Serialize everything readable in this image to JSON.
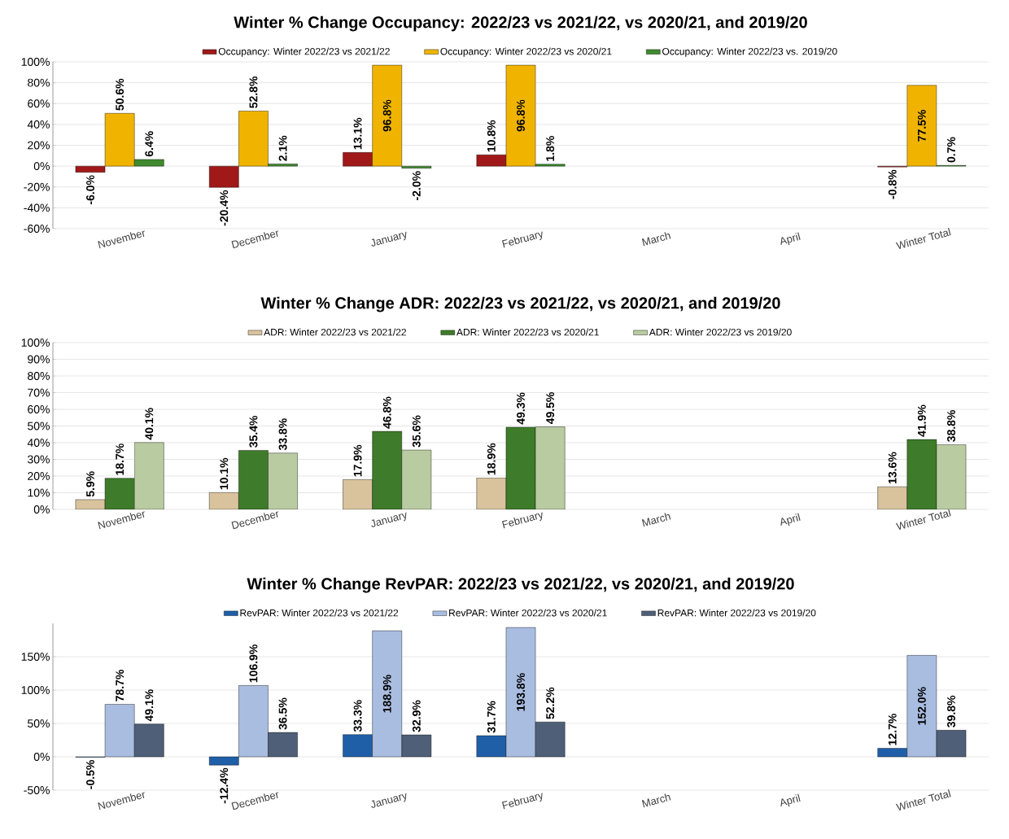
{
  "chart_data": [
    {
      "type": "bar",
      "title": "Winter % Change Occupancy:  2022/23 vs 2021/22, vs 2020/21, and 2019/20",
      "categories": [
        "November",
        "December",
        "January",
        "February",
        "March",
        "April",
        "Winter Total"
      ],
      "legend": "top",
      "grid": "y",
      "ylim": [
        -60,
        100
      ],
      "yticks": [
        {
          "value": -60,
          "label": "-60%"
        },
        {
          "value": -40,
          "label": "-40%"
        },
        {
          "value": -20,
          "label": "-20%"
        },
        {
          "value": 0,
          "label": "0%"
        },
        {
          "value": 20,
          "label": "20%"
        },
        {
          "value": 40,
          "label": "40%"
        },
        {
          "value": 60,
          "label": "60%"
        },
        {
          "value": 80,
          "label": "80%"
        },
        {
          "value": 100,
          "label": "100%"
        }
      ],
      "series": [
        {
          "name": "Occupancy: Winter 2022/23 vs 2021/22",
          "color": "#a01818",
          "values": [
            -6.0,
            -20.4,
            13.1,
            10.8,
            null,
            null,
            -0.8
          ],
          "value_labels": [
            "-6.0%",
            "-20.4%",
            "13.1%",
            "10.8%",
            null,
            null,
            "-0.8%"
          ]
        },
        {
          "name": "Occupancy: Winter 2022/23 vs 2020/21",
          "color": "#f0b400",
          "values": [
            50.6,
            52.8,
            96.8,
            96.8,
            null,
            null,
            77.5
          ],
          "value_labels": [
            "50.6%",
            "52.8%",
            "96.8%",
            "96.8%",
            null,
            null,
            "77.5%"
          ]
        },
        {
          "name": "Occupancy: Winter 2022/23 vs. 2019/20",
          "color": "#3f8a2e",
          "values": [
            6.4,
            2.1,
            -2.0,
            1.8,
            null,
            null,
            0.7
          ],
          "value_labels": [
            "6.4%",
            "2.1%",
            "-2.0%",
            "1.8%",
            null,
            null,
            "0.7%"
          ]
        }
      ]
    },
    {
      "type": "bar",
      "title": "Winter % Change ADR:  2022/23 vs 2021/22, vs 2020/21, and 2019/20",
      "categories": [
        "November",
        "December",
        "January",
        "February",
        "March",
        "April",
        "Winter Total"
      ],
      "legend": "top",
      "grid": "y",
      "ylim": [
        0,
        100
      ],
      "yticks": [
        {
          "value": 0,
          "label": "0%"
        },
        {
          "value": 10,
          "label": "10%"
        },
        {
          "value": 20,
          "label": "20%"
        },
        {
          "value": 30,
          "label": "30%"
        },
        {
          "value": 40,
          "label": "40%"
        },
        {
          "value": 50,
          "label": "50%"
        },
        {
          "value": 60,
          "label": "60%"
        },
        {
          "value": 70,
          "label": "70%"
        },
        {
          "value": 80,
          "label": "80%"
        },
        {
          "value": 90,
          "label": "90%"
        },
        {
          "value": 100,
          "label": "100%"
        }
      ],
      "series": [
        {
          "name": "ADR: Winter 2022/23 vs 2021/22",
          "color": "#d8c39c",
          "values": [
            5.9,
            10.1,
            17.9,
            18.9,
            null,
            null,
            13.6
          ],
          "value_labels": [
            "5.9%",
            "10.1%",
            "17.9%",
            "18.9%",
            null,
            null,
            "13.6%"
          ]
        },
        {
          "name": "ADR: Winter 2022/23 vs 2020/21",
          "color": "#3e7b2a",
          "values": [
            18.7,
            35.4,
            46.8,
            49.3,
            null,
            null,
            41.9
          ],
          "value_labels": [
            "18.7%",
            "35.4%",
            "46.8%",
            "49.3%",
            null,
            null,
            "41.9%"
          ]
        },
        {
          "name": "ADR: Winter 2022/23 vs 2019/20",
          "color": "#b9cba0",
          "values": [
            40.1,
            33.8,
            35.6,
            49.5,
            null,
            null,
            38.8
          ],
          "value_labels": [
            "40.1%",
            "33.8%",
            "35.6%",
            "49.5%",
            null,
            null,
            "38.8%"
          ]
        }
      ]
    },
    {
      "type": "bar",
      "title": "Winter % Change RevPAR:  2022/23 vs 2021/22, vs 2020/21, and 2019/20",
      "categories": [
        "November",
        "December",
        "January",
        "February",
        "March",
        "April",
        "Winter Total"
      ],
      "legend": "top",
      "grid": "y",
      "ylim": [
        -50,
        200
      ],
      "yticks": [
        {
          "value": -50,
          "label": "-50%"
        },
        {
          "value": 0,
          "label": "0%"
        },
        {
          "value": 50,
          "label": "50%"
        },
        {
          "value": 100,
          "label": "100%"
        },
        {
          "value": 150,
          "label": "150%"
        }
      ],
      "series": [
        {
          "name": "RevPAR: Winter 2022/23 vs 2021/22",
          "color": "#1f5fa8",
          "values": [
            -0.5,
            -12.4,
            33.3,
            31.7,
            null,
            null,
            12.7
          ],
          "value_labels": [
            "-0.5%",
            "-12.4%",
            "33.3%",
            "31.7%",
            null,
            null,
            "12.7%"
          ]
        },
        {
          "name": "RevPAR: Winter 2022/23 vs 2020/21",
          "color": "#a9bde0",
          "values": [
            78.7,
            106.9,
            188.9,
            193.8,
            null,
            null,
            152.0
          ],
          "value_labels": [
            "78.7%",
            "106.9%",
            "188.9%",
            "193.8%",
            null,
            null,
            "152.0%"
          ]
        },
        {
          "name": "RevPAR: Winter 2022/23 vs 2019/20",
          "color": "#4f5f78",
          "values": [
            49.1,
            36.5,
            32.9,
            52.2,
            null,
            null,
            39.8
          ],
          "value_labels": [
            "49.1%",
            "36.5%",
            "32.9%",
            "52.2%",
            null,
            null,
            "39.8%"
          ]
        }
      ]
    }
  ]
}
